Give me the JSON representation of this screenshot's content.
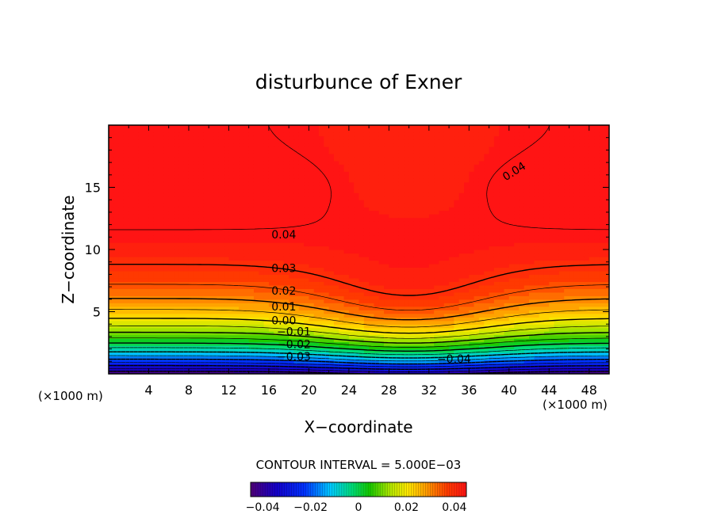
{
  "chart_data": {
    "type": "contour",
    "title": "disturbunce of Exner",
    "xlabel": "X−coordinate",
    "ylabel": "Z−coordinate",
    "x_unit_left": "(×1000 m)",
    "x_unit_right": "(×1000 m)",
    "x_ticks": [
      "4",
      "8",
      "12",
      "16",
      "20",
      "24",
      "28",
      "32",
      "36",
      "40",
      "44",
      "48"
    ],
    "y_ticks": [
      "5",
      "10",
      "15"
    ],
    "xlim": [
      0,
      50
    ],
    "ylim": [
      0,
      20
    ],
    "contour_interval_text": "CONTOUR INTERVAL = 5.000E−03",
    "contour_interval": 0.005,
    "value_range": [
      -0.045,
      0.045
    ],
    "bump_center_x": 30,
    "contour_labels": [
      {
        "text": "0.04",
        "x": 17.5,
        "z": 11.2
      },
      {
        "text": "0.04",
        "x": 40.5,
        "z": 16.3
      },
      {
        "text": "0.03",
        "x": 17.5,
        "z": 8.5
      },
      {
        "text": "0.02",
        "x": 17.5,
        "z": 6.7
      },
      {
        "text": "0.01",
        "x": 17.5,
        "z": 5.4
      },
      {
        "text": "0.00",
        "x": 17.5,
        "z": 4.3
      },
      {
        "text": "−0.01",
        "x": 18.5,
        "z": 3.4
      },
      {
        "text": "−0.02",
        "x": 18.5,
        "z": 2.4
      },
      {
        "text": "−0.03",
        "x": 18.5,
        "z": 1.4
      },
      {
        "text": "−0.04",
        "x": 34.5,
        "z": 1.2
      }
    ],
    "colorbar_ticks": [
      "−0.04",
      "−0.02",
      "0",
      "0.02",
      "0.04"
    ],
    "colorbar_tick_values": [
      -0.04,
      -0.02,
      0,
      0.02,
      0.04
    ]
  }
}
